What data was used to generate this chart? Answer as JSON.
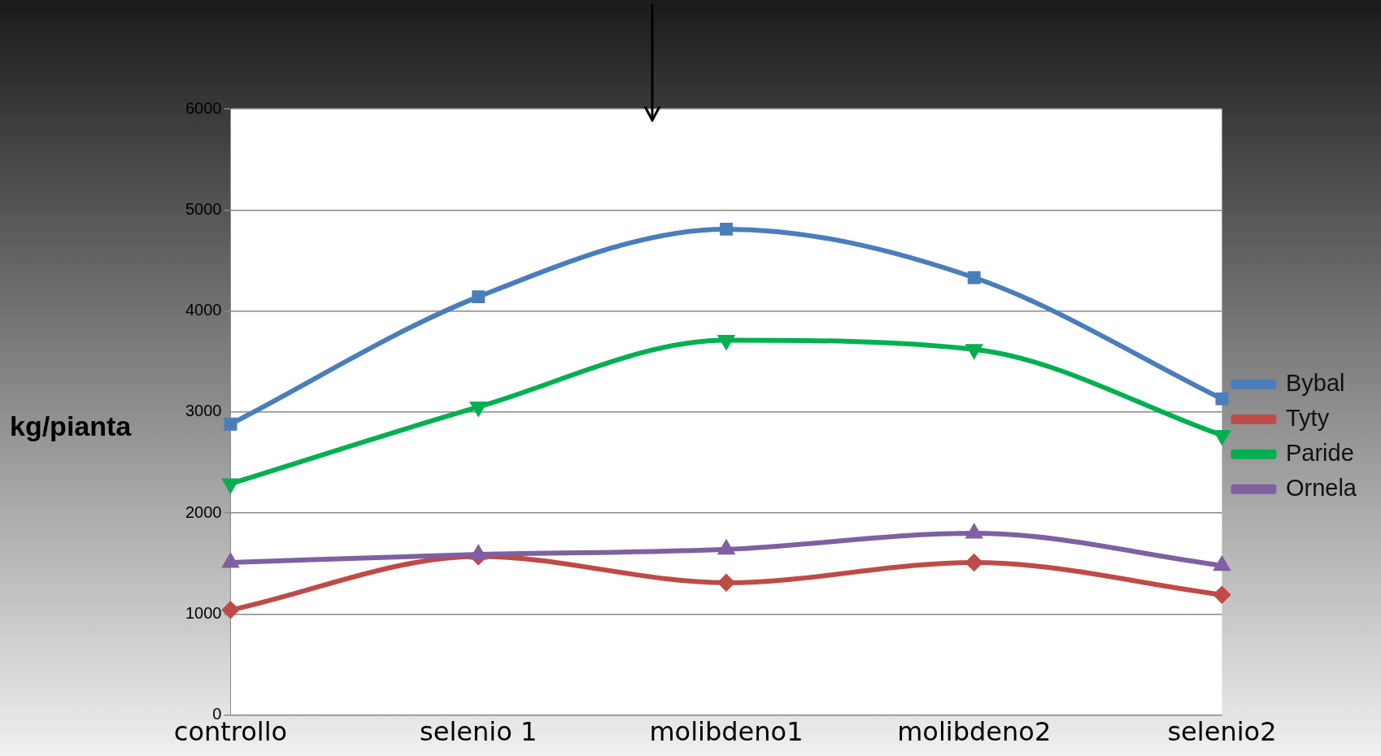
{
  "chart_data": {
    "type": "line",
    "ylabel": "kg/pianta",
    "categories": [
      "controllo",
      "selenio 1",
      "molibdeno1",
      "molibdeno2",
      "selenio2"
    ],
    "series": [
      {
        "name": "Bybal",
        "color": "#4a7ebb",
        "marker": "square",
        "values": [
          2880,
          4140,
          4810,
          4330,
          3130
        ]
      },
      {
        "name": "Tyty",
        "color": "#be4b48",
        "marker": "diamond",
        "values": [
          1040,
          1570,
          1310,
          1510,
          1190
        ]
      },
      {
        "name": "Paride",
        "color": "#00b050",
        "marker": "triangle-down",
        "values": [
          2290,
          3050,
          3710,
          3620,
          2770
        ]
      },
      {
        "name": "Ornela",
        "color": "#7f60a0",
        "marker": "triangle",
        "values": [
          1510,
          1590,
          1640,
          1800,
          1480
        ]
      }
    ],
    "ylim": [
      0,
      6000
    ],
    "yticks": [
      0,
      1000,
      2000,
      3000,
      4000,
      5000,
      6000
    ],
    "grid": "y",
    "legend": "right"
  }
}
